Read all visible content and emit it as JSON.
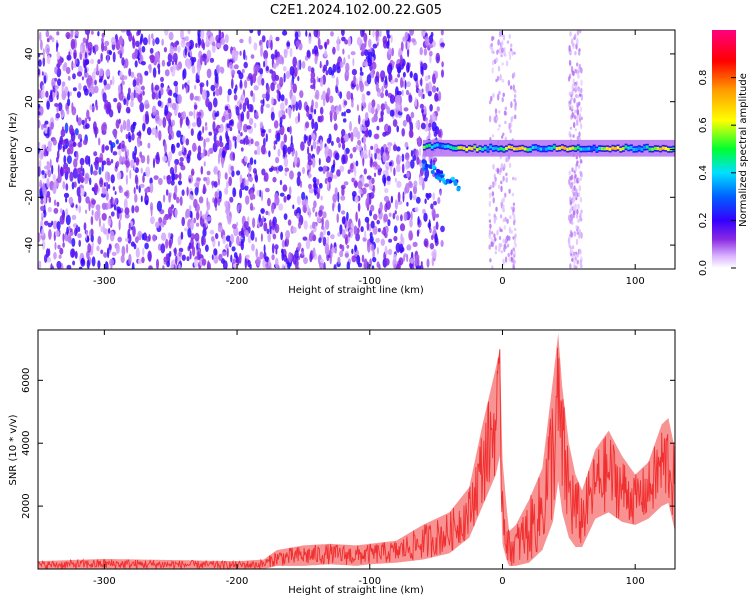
{
  "chart_data": [
    {
      "type": "heatmap",
      "title": "C2E1.2024.102.00.22.G05",
      "xlabel": "Height of straight line (km)",
      "ylabel": "Frequency (Hz)",
      "xlim": [
        -350,
        130
      ],
      "ylim": [
        -50,
        50
      ],
      "xticks": [
        "-300",
        "-200",
        "-100",
        "0",
        "100"
      ],
      "yticks": [
        "-40",
        "-20",
        "0",
        "20",
        "40"
      ],
      "colorbar": {
        "label": "Normalized spectral amplitude",
        "range": [
          0,
          1
        ],
        "ticks": [
          "0.0",
          "0.2",
          "0.4",
          "0.6",
          "0.8"
        ],
        "colors": [
          "#ffffff",
          "#d9b3ff",
          "#8a2be2",
          "#3300ff",
          "#0060ff",
          "#00e0ff",
          "#00ff30",
          "#ffff00",
          "#ff9900",
          "#ff0000",
          "#ff007f"
        ]
      },
      "features": [
        {
          "description": "noise band",
          "x_range": [
            -350,
            -45
          ],
          "freq_range": [
            -50,
            50
          ],
          "amplitude": 0.15
        },
        {
          "description": "signal line",
          "x_range": [
            -60,
            130
          ],
          "freq": 0,
          "amplitude": 0.6
        },
        {
          "description": "low-frequency excursion",
          "x_range": [
            -65,
            -30
          ],
          "freq_range": [
            -17,
            5
          ],
          "amplitude": 0.3
        },
        {
          "description": "broadband stripe",
          "x_range": [
            -10,
            10
          ],
          "freq_range": [
            -50,
            50
          ],
          "amplitude": 0.08
        },
        {
          "description": "broadband stripe",
          "x_range": [
            50,
            60
          ],
          "freq_range": [
            -50,
            50
          ],
          "amplitude": 0.08
        }
      ]
    },
    {
      "type": "line",
      "title": "",
      "xlabel": "Height of straight line (km)",
      "ylabel": "SNR (10 * v/v)",
      "xlim": [
        -350,
        130
      ],
      "ylim": [
        0,
        7600
      ],
      "xticks": [
        "-300",
        "-200",
        "-100",
        "0",
        "100"
      ],
      "yticks": [
        "2000",
        "4000",
        "6000"
      ],
      "color": "#f03030",
      "envelope": {
        "x": [
          -350,
          -300,
          -200,
          -180,
          -170,
          -150,
          -130,
          -110,
          -100,
          -80,
          -60,
          -40,
          -25,
          -15,
          -5,
          -2,
          0,
          3,
          5,
          10,
          20,
          30,
          38,
          42,
          45,
          50,
          55,
          60,
          70,
          80,
          90,
          100,
          110,
          120,
          125,
          130
        ],
        "upper": [
          250,
          320,
          250,
          300,
          600,
          750,
          800,
          750,
          800,
          900,
          1400,
          1800,
          2600,
          4600,
          6400,
          7000,
          3500,
          2000,
          1200,
          1400,
          2200,
          3200,
          6000,
          7500,
          5800,
          4000,
          3000,
          2500,
          3800,
          4400,
          3600,
          3000,
          3400,
          4600,
          4800,
          3800
        ],
        "lower": [
          0,
          0,
          0,
          0,
          100,
          100,
          150,
          100,
          150,
          200,
          300,
          500,
          1000,
          2000,
          3000,
          3600,
          800,
          300,
          100,
          100,
          200,
          600,
          1500,
          2800,
          1800,
          1000,
          700,
          700,
          1600,
          1800,
          1500,
          1400,
          1600,
          2000,
          2100,
          1200
        ]
      }
    }
  ]
}
